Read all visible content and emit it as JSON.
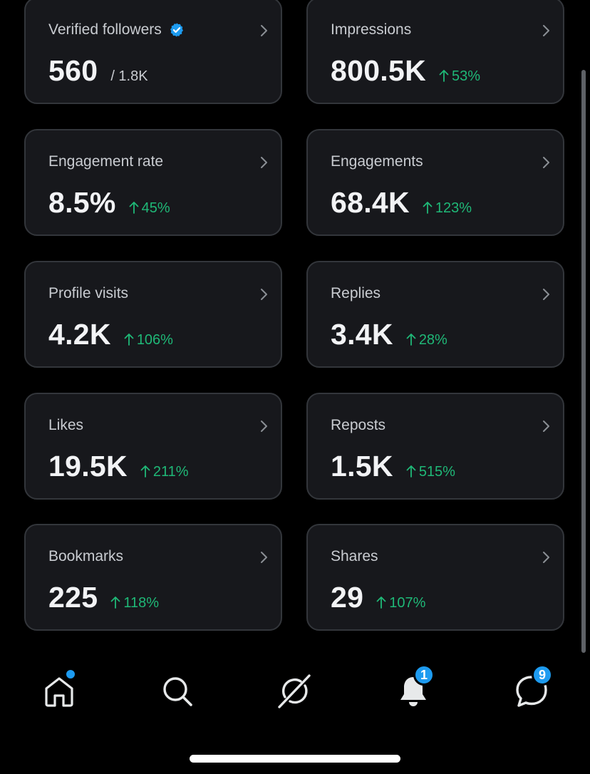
{
  "colors": {
    "background": "#000000",
    "card_background": "#17181c",
    "card_border": "#33363b",
    "positive_delta": "#1fb877",
    "accent": "#1d9bf0"
  },
  "metrics": [
    {
      "label": "Verified followers",
      "value": "560",
      "sub": "/ 1.8K",
      "verified_icon": "verified-badge-icon"
    },
    {
      "label": "Impressions",
      "value": "800.5K",
      "delta": "53%"
    },
    {
      "label": "Engagement rate",
      "value": "8.5%",
      "delta": "45%"
    },
    {
      "label": "Engagements",
      "value": "68.4K",
      "delta": "123%"
    },
    {
      "label": "Profile visits",
      "value": "4.2K",
      "delta": "106%"
    },
    {
      "label": "Replies",
      "value": "3.4K",
      "delta": "28%"
    },
    {
      "label": "Likes",
      "value": "19.5K",
      "delta": "211%"
    },
    {
      "label": "Reposts",
      "value": "1.5K",
      "delta": "515%"
    },
    {
      "label": "Bookmarks",
      "value": "225",
      "delta": "118%"
    },
    {
      "label": "Shares",
      "value": "29",
      "delta": "107%"
    }
  ],
  "nav": {
    "items": [
      {
        "icon": "home-icon",
        "has_dot": true
      },
      {
        "icon": "search-icon"
      },
      {
        "icon": "grok-icon"
      },
      {
        "icon": "bell-icon",
        "badge": "1"
      },
      {
        "icon": "messages-icon",
        "badge": "9"
      }
    ]
  }
}
